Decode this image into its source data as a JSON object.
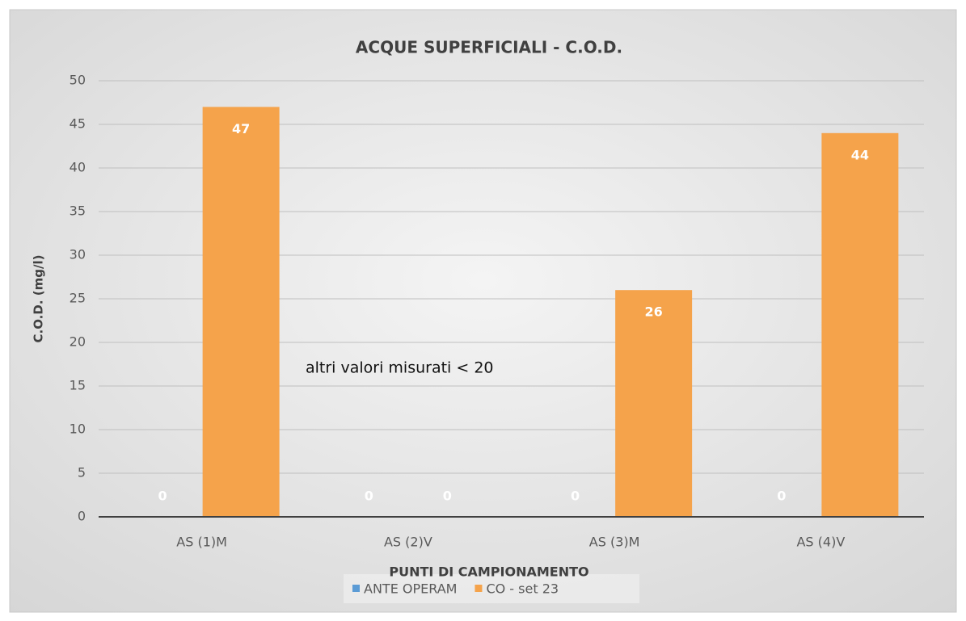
{
  "chart_data": {
    "type": "bar",
    "title": "ACQUE SUPERFICIALI - C.O.D.",
    "x_label": "PUNTI DI CAMPIONAMENTO",
    "y_label": "C.O.D. (mg/l)",
    "annotation": "altri valori misurati  < 20",
    "categories": [
      "AS (1)M",
      "AS (2)V",
      "AS (3)M",
      "AS (4)V"
    ],
    "series": [
      {
        "name": "ANTE OPERAM",
        "color": "#5b9bd5",
        "values": [
          0,
          0,
          0,
          0
        ]
      },
      {
        "name": "CO - set 23",
        "color": "#f5a34b",
        "values": [
          47,
          0,
          26,
          44
        ]
      }
    ],
    "ylim": [
      0,
      50
    ],
    "yticks": [
      0,
      5,
      10,
      15,
      20,
      25,
      30,
      35,
      40,
      45,
      50
    ],
    "grid": true,
    "legend": "bottom"
  }
}
